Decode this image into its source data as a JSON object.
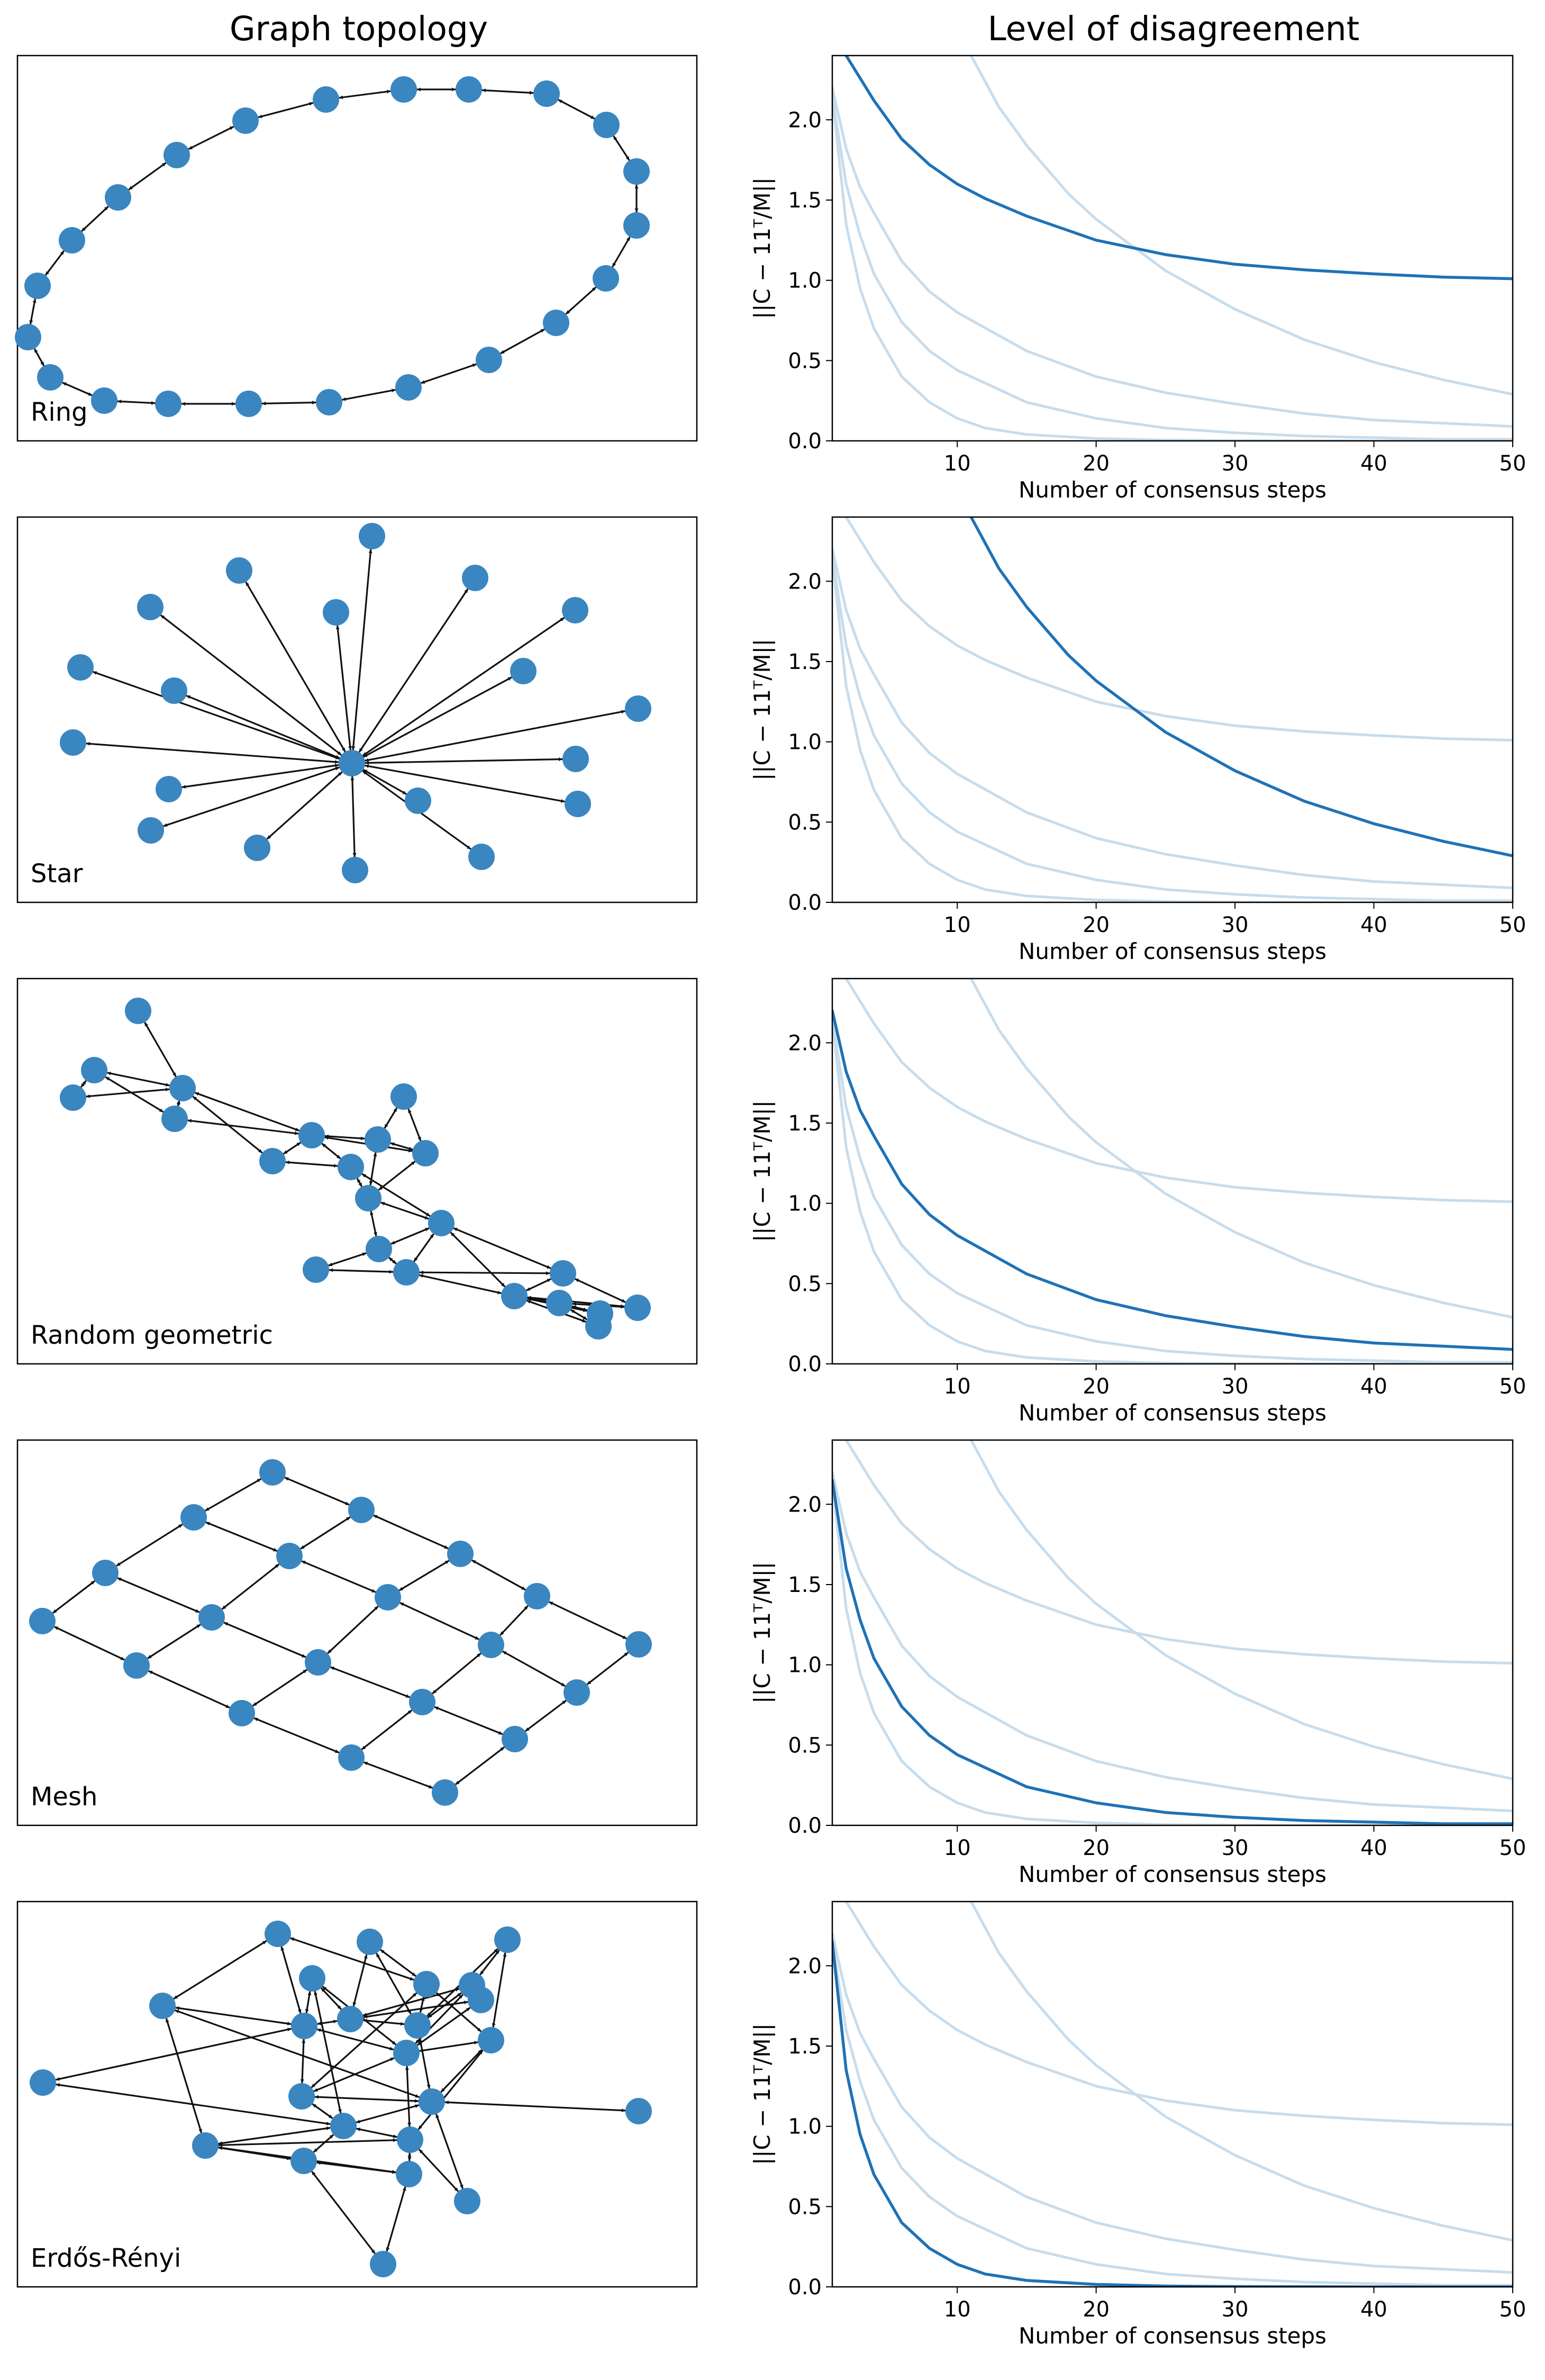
{
  "figure": {
    "left_title": "Graph topology",
    "right_title": "Level of disagreement"
  },
  "colors": {
    "node": "#3a86c0",
    "edge": "#111111",
    "line_highlight": "#1f72b6",
    "line_faded": "#c7dcec"
  },
  "graph_labels": [
    "Ring",
    "Star",
    "Random geometric",
    "Mesh",
    "Erdős-Rényi"
  ],
  "chart_data": [
    {
      "type": "line",
      "topology": "Ring",
      "highlight_index": 0,
      "xlabel": "Number of consensus steps",
      "ylabel": "||C − 11ᵀ/M||",
      "xlim": [
        1,
        50
      ],
      "ylim": [
        0,
        2.4
      ],
      "xticks": [
        "10",
        "20",
        "30",
        "40",
        "50"
      ],
      "yticks": [
        "0.0",
        "0.5",
        "1.0",
        "1.5",
        "2.0"
      ],
      "series": [
        {
          "name": "Ring",
          "x": [
            2,
            4,
            6,
            8,
            10,
            12,
            15,
            20,
            25,
            30,
            35,
            40,
            45,
            50
          ],
          "values": [
            2.4,
            2.12,
            1.88,
            1.72,
            1.6,
            1.51,
            1.4,
            1.25,
            1.16,
            1.1,
            1.065,
            1.04,
            1.02,
            1.01
          ]
        },
        {
          "name": "Star",
          "x": [
            11,
            13,
            15,
            18,
            20,
            25,
            30,
            35,
            40,
            45,
            50
          ],
          "values": [
            2.4,
            2.08,
            1.84,
            1.54,
            1.38,
            1.06,
            0.82,
            0.63,
            0.49,
            0.38,
            0.29
          ]
        },
        {
          "name": "Random geometric",
          "x": [
            1,
            2,
            3,
            4,
            6,
            8,
            10,
            15,
            20,
            25,
            30,
            35,
            40,
            45,
            50
          ],
          "values": [
            2.2,
            1.82,
            1.58,
            1.42,
            1.12,
            0.93,
            0.8,
            0.56,
            0.4,
            0.3,
            0.23,
            0.17,
            0.13,
            0.11,
            0.09
          ]
        },
        {
          "name": "Mesh",
          "x": [
            1,
            2,
            3,
            4,
            6,
            8,
            10,
            15,
            20,
            25,
            30,
            35,
            40,
            45,
            50
          ],
          "values": [
            2.15,
            1.6,
            1.28,
            1.04,
            0.74,
            0.56,
            0.44,
            0.24,
            0.14,
            0.08,
            0.05,
            0.03,
            0.02,
            0.01,
            0.01
          ]
        },
        {
          "name": "Erdős-Rényi",
          "x": [
            1,
            2,
            3,
            4,
            6,
            8,
            10,
            12,
            15,
            20,
            25,
            30,
            40,
            50
          ],
          "values": [
            2.15,
            1.35,
            0.95,
            0.7,
            0.4,
            0.24,
            0.14,
            0.08,
            0.04,
            0.015,
            0.005,
            0.002,
            0.0,
            0.0
          ]
        }
      ]
    },
    {
      "type": "line",
      "topology": "Star",
      "highlight_index": 1,
      "xlabel": "Number of consensus steps",
      "ylabel": "||C − 11ᵀ/M||",
      "xlim": [
        1,
        50
      ],
      "ylim": [
        0,
        2.4
      ],
      "xticks": [
        "10",
        "20",
        "30",
        "40",
        "50"
      ],
      "yticks": [
        "0.0",
        "0.5",
        "1.0",
        "1.5",
        "2.0"
      ],
      "series_ref": 0
    },
    {
      "type": "line",
      "topology": "Random geometric",
      "highlight_index": 2,
      "xlabel": "Number of consensus steps",
      "ylabel": "||C − 11ᵀ/M||",
      "xlim": [
        1,
        50
      ],
      "ylim": [
        0,
        2.4
      ],
      "xticks": [
        "10",
        "20",
        "30",
        "40",
        "50"
      ],
      "yticks": [
        "0.0",
        "0.5",
        "1.0",
        "1.5",
        "2.0"
      ],
      "series_ref": 0
    },
    {
      "type": "line",
      "topology": "Mesh",
      "highlight_index": 3,
      "xlabel": "Number of consensus steps",
      "ylabel": "||C − 11ᵀ/M||",
      "xlim": [
        1,
        50
      ],
      "ylim": [
        0,
        2.4
      ],
      "xticks": [
        "10",
        "20",
        "30",
        "40",
        "50"
      ],
      "yticks": [
        "0.0",
        "0.5",
        "1.0",
        "1.5",
        "2.0"
      ],
      "series_ref": 0
    },
    {
      "type": "line",
      "topology": "Erdős-Rényi",
      "highlight_index": 4,
      "xlabel": "Number of consensus steps",
      "ylabel": "||C − 11ᵀ/M||",
      "xlim": [
        1,
        50
      ],
      "ylim": [
        0,
        2.4
      ],
      "xticks": [
        "10",
        "20",
        "30",
        "40",
        "50"
      ],
      "yticks": [
        "0.0",
        "0.5",
        "1.0",
        "1.5",
        "2.0"
      ],
      "series_ref": 0
    }
  ]
}
